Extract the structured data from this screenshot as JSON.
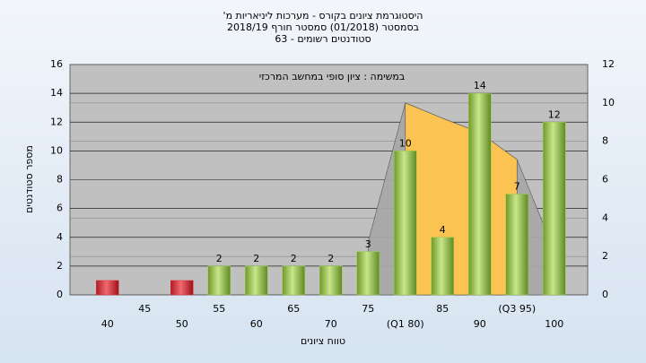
{
  "chart_data": {
    "type": "bar",
    "title": "היסטוגרמת ציונים בקורס - מערכות ליניאריות מ'",
    "subtitle": "בסמסטר (01/2018) סמסטר חורף 2018/19",
    "subtitle2": "סטודנטים רשומים - 63",
    "annotation": "במשימה : ציון סופי במחשב המרכזי",
    "ylabel": "מספר סטודנטים",
    "xlabel": "טווח ציונים",
    "categories": [
      "40",
      "45",
      "50",
      "55",
      "60",
      "65",
      "70",
      "75",
      "(Q1 80)",
      "85",
      "90",
      "(Q3 95)",
      "100"
    ],
    "values": [
      1,
      0,
      1,
      2,
      2,
      2,
      2,
      3,
      10,
      4,
      14,
      7,
      12
    ],
    "colors": [
      "#e0303a",
      "#e0303a",
      "#e0303a",
      "#9acd4a",
      "#9acd4a",
      "#9acd4a",
      "#9acd4a",
      "#9acd4a",
      "#9acd4a",
      "#9acd4a",
      "#9acd4a",
      "#9acd4a",
      "#9acd4a"
    ],
    "show_labels": [
      false,
      false,
      false,
      true,
      true,
      true,
      true,
      true,
      true,
      true,
      true,
      true,
      true
    ],
    "series": [
      {
        "kind": "whisker",
        "axis": "y2",
        "color": "#a8a8a8",
        "values": [
          null,
          null,
          null,
          null,
          null,
          null,
          null,
          2.75,
          10,
          9.2,
          8.45,
          7.05,
          2.3
        ]
      },
      {
        "kind": "box",
        "axis": "y2",
        "color": "#ffc44d",
        "values": [
          null,
          null,
          null,
          null,
          null,
          null,
          null,
          null,
          10,
          9.2,
          8.45,
          7.05,
          null
        ]
      }
    ],
    "ylim": [
      0,
      16
    ],
    "yticks": [
      0,
      2,
      4,
      6,
      8,
      10,
      12,
      14,
      16
    ],
    "y2lim": [
      0,
      12
    ],
    "y2ticks": [
      0,
      2,
      4,
      6,
      8,
      10,
      12
    ],
    "grid": true
  }
}
